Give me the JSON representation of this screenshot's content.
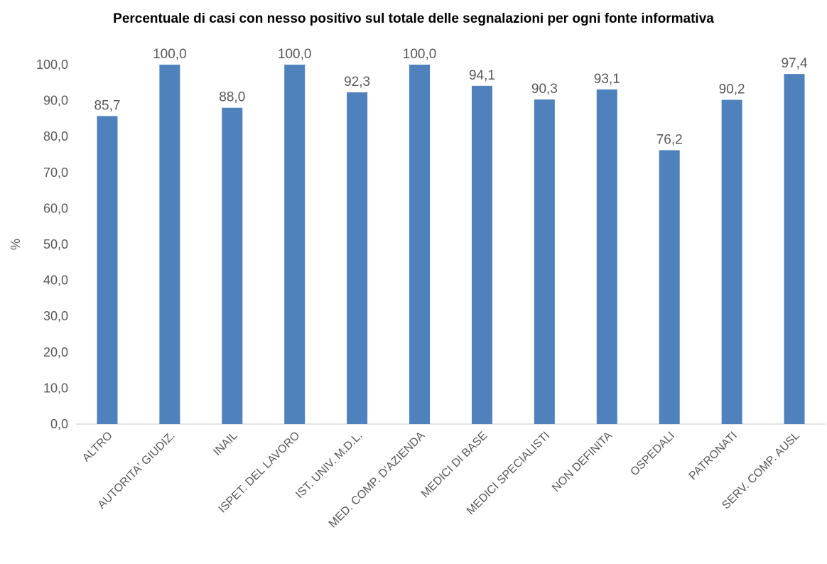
{
  "chart_data": {
    "type": "bar",
    "title": "Percentuale di casi con nesso positivo sul totale delle segnalazioni per ogni fonte informativa",
    "xlabel": "",
    "ylabel": "%",
    "ylim": [
      0,
      100
    ],
    "ytick_step": 10,
    "yticks": [
      "0,0",
      "10,0",
      "20,0",
      "30,0",
      "40,0",
      "50,0",
      "60,0",
      "70,0",
      "80,0",
      "90,0",
      "100,0"
    ],
    "grid": false,
    "legend": "none",
    "bar_color": "#4f81bd",
    "categories": [
      "ALTRO",
      "AUTORITA' GIUDIZ.",
      "INAIL",
      "ISPET. DEL LAVORO",
      "IST. UNIV. M.D.L.",
      "MED. COMP. D'AZIENDA",
      "MEDICI DI BASE",
      "MEDICI SPECIALISTI",
      "NON DEFINITA",
      "OSPEDALI",
      "PATRONATI",
      "SERV. COMP. AUSL"
    ],
    "values": [
      85.7,
      100.0,
      88.0,
      100.0,
      92.3,
      100.0,
      94.1,
      90.3,
      93.1,
      76.2,
      90.2,
      97.4
    ],
    "value_labels": [
      "85,7",
      "100,0",
      "88,0",
      "100,0",
      "92,3",
      "100,0",
      "94,1",
      "90,3",
      "93,1",
      "76,2",
      "90,2",
      "97,4"
    ]
  }
}
